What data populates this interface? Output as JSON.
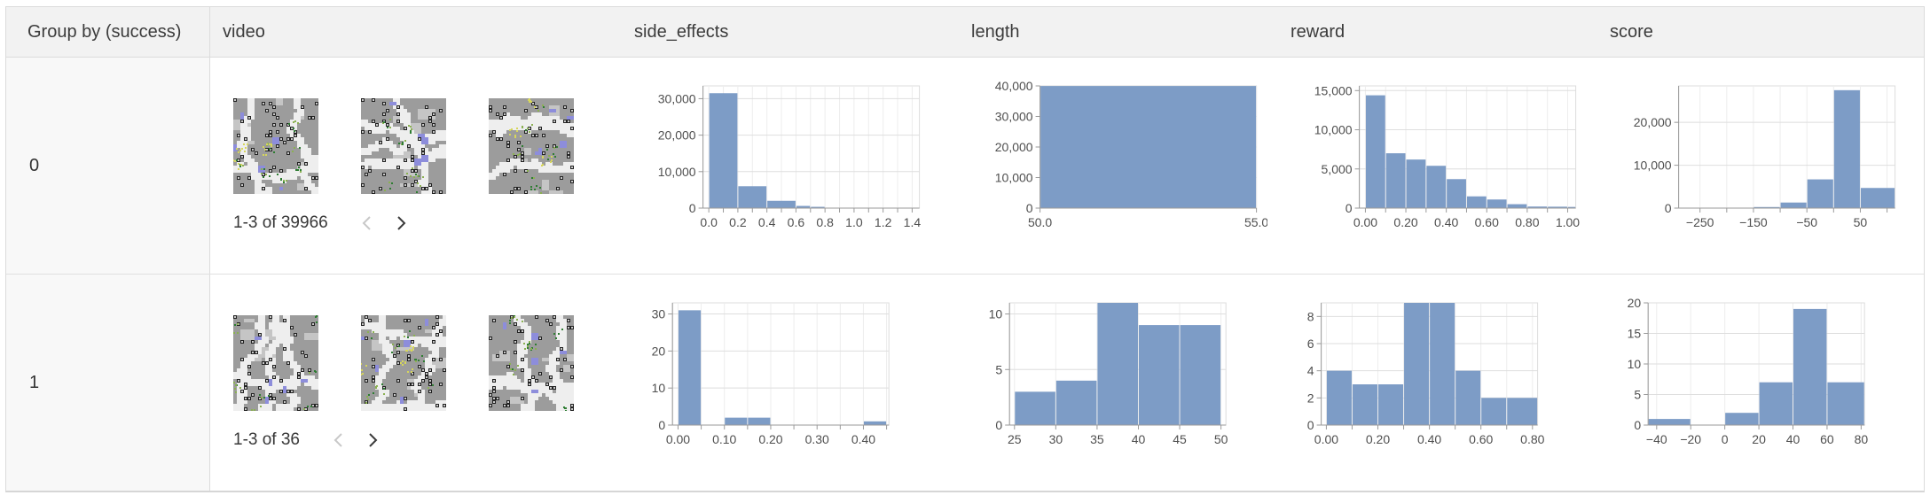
{
  "colors": {
    "bar": "#7d9cc6",
    "grid": "#dedede",
    "vgrid": "#ededed",
    "axis": "#9a9a9a",
    "tick_text": "#4f4f4f",
    "frame": "#dddddd"
  },
  "header": {
    "columns": [
      {
        "id": "group",
        "label": "Group by (success)"
      },
      {
        "id": "video",
        "label": "video"
      },
      {
        "id": "side_effects",
        "label": "side_effects"
      },
      {
        "id": "length",
        "label": "length"
      },
      {
        "id": "reward",
        "label": "reward"
      },
      {
        "id": "score",
        "label": "score"
      }
    ]
  },
  "rows": [
    {
      "group_value": "0",
      "video": {
        "pagination_label": "1-3 of 39966",
        "thumbnail_count": 3,
        "prev_enabled": false,
        "next_enabled": true
      },
      "charts": {
        "side_effects": "r0_side_effects",
        "length": "r0_length",
        "reward": "r0_reward",
        "score": "r0_score"
      }
    },
    {
      "group_value": "1",
      "video": {
        "pagination_label": "1-3 of 36",
        "thumbnail_count": 3,
        "prev_enabled": false,
        "next_enabled": true
      },
      "charts": {
        "side_effects": "r1_side_effects",
        "length": "r1_length",
        "reward": "r1_reward",
        "score": "r1_score"
      }
    }
  ],
  "chart_data": [
    {
      "id": "r0_side_effects",
      "type": "bar",
      "group": "0",
      "column": "side_effects",
      "bins": [
        [
          0.0,
          0.2,
          31500
        ],
        [
          0.2,
          0.4,
          6000
        ],
        [
          0.4,
          0.6,
          2000
        ],
        [
          0.6,
          0.7,
          600
        ],
        [
          0.7,
          0.8,
          350
        ],
        [
          0.8,
          1.45,
          60
        ]
      ],
      "xlim": [
        -0.04,
        1.45
      ],
      "ylim": [
        0,
        33500
      ],
      "xticks": [
        {
          "v": 0.0,
          "label": "0.0"
        },
        {
          "v": 0.1,
          "label": ""
        },
        {
          "v": 0.2,
          "label": "0.2"
        },
        {
          "v": 0.3,
          "label": ""
        },
        {
          "v": 0.4,
          "label": "0.4"
        },
        {
          "v": 0.5,
          "label": ""
        },
        {
          "v": 0.6,
          "label": "0.6"
        },
        {
          "v": 0.7,
          "label": ""
        },
        {
          "v": 0.8,
          "label": "0.8"
        },
        {
          "v": 0.9,
          "label": ""
        },
        {
          "v": 1.0,
          "label": "1.0"
        },
        {
          "v": 1.1,
          "label": ""
        },
        {
          "v": 1.2,
          "label": "1.2"
        },
        {
          "v": 1.3,
          "label": ""
        },
        {
          "v": 1.4,
          "label": "1.4"
        }
      ],
      "yticks": [
        {
          "v": 0,
          "label": "0"
        },
        {
          "v": 10000,
          "label": "10,000"
        },
        {
          "v": 20000,
          "label": "20,000"
        },
        {
          "v": 30000,
          "label": "30,000"
        }
      ],
      "grid": true
    },
    {
      "id": "r0_length",
      "type": "bar",
      "group": "0",
      "column": "length",
      "bins": [
        [
          50.0,
          55.0,
          39966
        ]
      ],
      "xlim": [
        50.0,
        55.0
      ],
      "ylim": [
        0,
        40000
      ],
      "xticks": [
        {
          "v": 50.0,
          "label": "50.0"
        },
        {
          "v": 55.0,
          "label": "55.0"
        }
      ],
      "yticks": [
        {
          "v": 0,
          "label": "0"
        },
        {
          "v": 10000,
          "label": "10,000"
        },
        {
          "v": 20000,
          "label": "20,000"
        },
        {
          "v": 30000,
          "label": "30,000"
        },
        {
          "v": 40000,
          "label": "40,000"
        }
      ],
      "grid": true
    },
    {
      "id": "r0_reward",
      "type": "bar",
      "group": "0",
      "column": "reward",
      "bins": [
        [
          0.0,
          0.1,
          14400
        ],
        [
          0.1,
          0.2,
          7000
        ],
        [
          0.2,
          0.3,
          6200
        ],
        [
          0.3,
          0.4,
          5400
        ],
        [
          0.4,
          0.5,
          3700
        ],
        [
          0.5,
          0.6,
          1500
        ],
        [
          0.6,
          0.7,
          1100
        ],
        [
          0.7,
          0.8,
          500
        ],
        [
          0.8,
          0.9,
          200
        ],
        [
          0.9,
          1.0,
          180
        ],
        [
          1.0,
          1.04,
          150
        ]
      ],
      "xlim": [
        -0.03,
        1.04
      ],
      "ylim": [
        0,
        15600
      ],
      "xticks": [
        {
          "v": 0.0,
          "label": "0.00"
        },
        {
          "v": 0.1,
          "label": ""
        },
        {
          "v": 0.2,
          "label": "0.20"
        },
        {
          "v": 0.3,
          "label": ""
        },
        {
          "v": 0.4,
          "label": "0.40"
        },
        {
          "v": 0.5,
          "label": ""
        },
        {
          "v": 0.6,
          "label": "0.60"
        },
        {
          "v": 0.7,
          "label": ""
        },
        {
          "v": 0.8,
          "label": "0.80"
        },
        {
          "v": 0.9,
          "label": ""
        },
        {
          "v": 1.0,
          "label": "1.00"
        }
      ],
      "yticks": [
        {
          "v": 0,
          "label": "0"
        },
        {
          "v": 5000,
          "label": "5,000"
        },
        {
          "v": 10000,
          "label": "10,000"
        },
        {
          "v": 15000,
          "label": "15,000"
        }
      ],
      "grid": true
    },
    {
      "id": "r0_score",
      "type": "bar",
      "group": "0",
      "column": "score",
      "bins": [
        [
          -150,
          -100,
          250
        ],
        [
          -100,
          -50,
          1300
        ],
        [
          -50,
          0,
          6700
        ],
        [
          0,
          50,
          27500
        ],
        [
          50,
          115,
          4700
        ]
      ],
      "xlim": [
        -290,
        115
      ],
      "ylim": [
        0,
        28500
      ],
      "xticks": [
        {
          "v": -250,
          "label": "−250"
        },
        {
          "v": -200,
          "label": ""
        },
        {
          "v": -150,
          "label": "−150"
        },
        {
          "v": -100,
          "label": ""
        },
        {
          "v": -50,
          "label": "−50"
        },
        {
          "v": 0,
          "label": ""
        },
        {
          "v": 50,
          "label": "50"
        },
        {
          "v": 100,
          "label": ""
        }
      ],
      "yticks": [
        {
          "v": 0,
          "label": "0"
        },
        {
          "v": 10000,
          "label": "10,000"
        },
        {
          "v": 20000,
          "label": "20,000"
        }
      ],
      "grid": true
    },
    {
      "id": "r1_side_effects",
      "type": "bar",
      "group": "1",
      "column": "side_effects",
      "bins": [
        [
          0.0,
          0.05,
          31
        ],
        [
          0.1,
          0.15,
          2
        ],
        [
          0.15,
          0.2,
          2
        ],
        [
          0.4,
          0.45,
          1
        ]
      ],
      "xlim": [
        -0.012,
        0.455
      ],
      "ylim": [
        0,
        33
      ],
      "xticks": [
        {
          "v": 0.0,
          "label": "0.00"
        },
        {
          "v": 0.05,
          "label": ""
        },
        {
          "v": 0.1,
          "label": "0.10"
        },
        {
          "v": 0.15,
          "label": ""
        },
        {
          "v": 0.2,
          "label": "0.20"
        },
        {
          "v": 0.25,
          "label": ""
        },
        {
          "v": 0.3,
          "label": "0.30"
        },
        {
          "v": 0.35,
          "label": ""
        },
        {
          "v": 0.4,
          "label": "0.40"
        },
        {
          "v": 0.45,
          "label": ""
        }
      ],
      "yticks": [
        {
          "v": 0,
          "label": "0"
        },
        {
          "v": 10,
          "label": "10"
        },
        {
          "v": 20,
          "label": "20"
        },
        {
          "v": 30,
          "label": "30"
        }
      ],
      "grid": true
    },
    {
      "id": "r1_length",
      "type": "bar",
      "group": "1",
      "column": "length",
      "bins": [
        [
          25,
          30,
          3
        ],
        [
          30,
          35,
          4
        ],
        [
          35,
          40,
          11
        ],
        [
          40,
          45,
          9
        ],
        [
          45,
          50,
          9
        ]
      ],
      "xlim": [
        24.4,
        50.6
      ],
      "ylim": [
        0,
        11
      ],
      "xticks": [
        {
          "v": 25,
          "label": "25"
        },
        {
          "v": 30,
          "label": "30"
        },
        {
          "v": 35,
          "label": "35"
        },
        {
          "v": 40,
          "label": "40"
        },
        {
          "v": 45,
          "label": "45"
        },
        {
          "v": 50,
          "label": "50"
        }
      ],
      "yticks": [
        {
          "v": 0,
          "label": "0"
        },
        {
          "v": 5,
          "label": "5"
        },
        {
          "v": 10,
          "label": "10"
        }
      ],
      "grid": true
    },
    {
      "id": "r1_reward",
      "type": "bar",
      "group": "1",
      "column": "reward",
      "bins": [
        [
          0.0,
          0.1,
          4
        ],
        [
          0.1,
          0.2,
          3
        ],
        [
          0.2,
          0.3,
          3
        ],
        [
          0.3,
          0.4,
          9
        ],
        [
          0.4,
          0.5,
          9
        ],
        [
          0.5,
          0.6,
          4
        ],
        [
          0.6,
          0.7,
          2
        ],
        [
          0.7,
          0.82,
          2
        ]
      ],
      "xlim": [
        -0.02,
        0.82
      ],
      "ylim": [
        0,
        9
      ],
      "xticks": [
        {
          "v": 0.0,
          "label": "0.00"
        },
        {
          "v": 0.1,
          "label": ""
        },
        {
          "v": 0.2,
          "label": "0.20"
        },
        {
          "v": 0.3,
          "label": ""
        },
        {
          "v": 0.4,
          "label": "0.40"
        },
        {
          "v": 0.5,
          "label": ""
        },
        {
          "v": 0.6,
          "label": "0.60"
        },
        {
          "v": 0.7,
          "label": ""
        },
        {
          "v": 0.8,
          "label": "0.80"
        }
      ],
      "yticks": [
        {
          "v": 0,
          "label": "0"
        },
        {
          "v": 2,
          "label": "2"
        },
        {
          "v": 4,
          "label": "4"
        },
        {
          "v": 6,
          "label": "6"
        },
        {
          "v": 8,
          "label": "8"
        }
      ],
      "grid": true
    },
    {
      "id": "r1_score",
      "type": "bar",
      "group": "1",
      "column": "score",
      "bins": [
        [
          -45,
          -20,
          1
        ],
        [
          0,
          20,
          2
        ],
        [
          20,
          40,
          7
        ],
        [
          40,
          60,
          19
        ],
        [
          60,
          82,
          7
        ]
      ],
      "xlim": [
        -45,
        82
      ],
      "ylim": [
        0,
        20
      ],
      "xticks": [
        {
          "v": -40,
          "label": "−40"
        },
        {
          "v": -20,
          "label": "−20"
        },
        {
          "v": 0,
          "label": "0"
        },
        {
          "v": 20,
          "label": "20"
        },
        {
          "v": 40,
          "label": "40"
        },
        {
          "v": 60,
          "label": "60"
        },
        {
          "v": 80,
          "label": "80"
        }
      ],
      "yticks": [
        {
          "v": 0,
          "label": "0"
        },
        {
          "v": 5,
          "label": "5"
        },
        {
          "v": 10,
          "label": "10"
        },
        {
          "v": 15,
          "label": "15"
        },
        {
          "v": 20,
          "label": "20"
        }
      ],
      "grid": true
    }
  ]
}
